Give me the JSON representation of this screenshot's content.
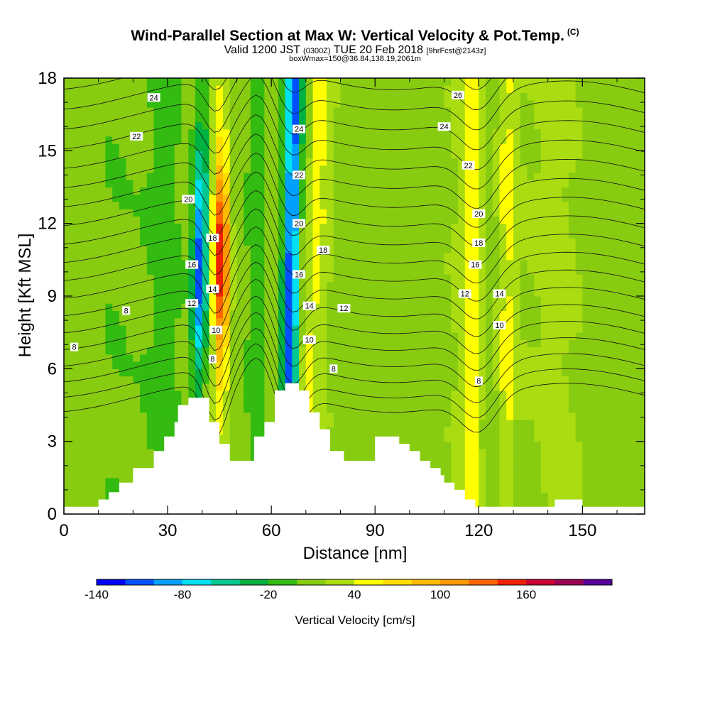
{
  "header": {
    "title": "Wind-Parallel Section at Max W: Vertical Velocity & Pot.Temp.",
    "copyright": "(C)",
    "valid_prefix": "Valid 1200 JST",
    "valid_utc": "(0300Z)",
    "valid_date": "TUE 20 Feb 2018",
    "forecast": "[9hrFcst@2143z]",
    "box_info": "boxWmax=150@36.84,138.19,2061m"
  },
  "chart_data": {
    "type": "heatmap",
    "xlabel": "Distance [nm]",
    "ylabel": "Height [Kft MSL]",
    "xlim": [
      0,
      168
    ],
    "ylim": [
      0,
      18
    ],
    "x_ticks": [
      "0",
      "30",
      "60",
      "90",
      "120",
      "150"
    ],
    "y_ticks": [
      "0",
      "3",
      "6",
      "9",
      "12",
      "15",
      "18"
    ],
    "colorbar": {
      "label": "Vertical Velocity [cm/s]",
      "tick_labels": [
        "-140",
        "-80",
        "-20",
        "40",
        "100",
        "160"
      ],
      "levels": [
        -140,
        -120,
        -100,
        -80,
        -60,
        -40,
        -20,
        0,
        20,
        40,
        60,
        80,
        100,
        120,
        140,
        160,
        180,
        200
      ],
      "colors": [
        "#0000ff",
        "#0050ff",
        "#00a0ff",
        "#00e0f0",
        "#00c890",
        "#00b040",
        "#33bb11",
        "#88cc11",
        "#aadd11",
        "#ffff00",
        "#ffdd00",
        "#ffbb00",
        "#ff9900",
        "#ff6600",
        "#ee2200",
        "#cc0033",
        "#990055",
        "#550099"
      ]
    },
    "terrain_kft": [
      [
        0,
        0.3
      ],
      [
        10,
        0.3
      ],
      [
        10,
        0.6
      ],
      [
        13,
        0.6
      ],
      [
        13,
        0.9
      ],
      [
        16,
        0.9
      ],
      [
        16,
        1.3
      ],
      [
        20,
        1.3
      ],
      [
        20,
        1.9
      ],
      [
        26,
        1.9
      ],
      [
        26,
        2.6
      ],
      [
        29,
        2.6
      ],
      [
        29,
        3.2
      ],
      [
        32,
        3.2
      ],
      [
        32,
        3.8
      ],
      [
        33,
        3.8
      ],
      [
        33,
        4.5
      ],
      [
        36,
        4.5
      ],
      [
        36,
        4.8
      ],
      [
        42,
        4.8
      ],
      [
        42,
        3.8
      ],
      [
        45,
        3.8
      ],
      [
        45,
        2.9
      ],
      [
        48,
        2.9
      ],
      [
        48,
        2.2
      ],
      [
        55,
        2.2
      ],
      [
        55,
        3.2
      ],
      [
        58,
        3.2
      ],
      [
        58,
        3.8
      ],
      [
        61,
        3.8
      ],
      [
        61,
        5.1
      ],
      [
        64,
        5.1
      ],
      [
        64,
        5.4
      ],
      [
        68,
        5.4
      ],
      [
        68,
        5.1
      ],
      [
        71,
        5.1
      ],
      [
        71,
        4.2
      ],
      [
        74,
        4.2
      ],
      [
        74,
        3.5
      ],
      [
        77,
        3.5
      ],
      [
        77,
        2.6
      ],
      [
        81,
        2.6
      ],
      [
        81,
        2.2
      ],
      [
        90,
        2.2
      ],
      [
        90,
        3.2
      ],
      [
        97,
        3.2
      ],
      [
        97,
        2.9
      ],
      [
        100,
        2.9
      ],
      [
        100,
        2.6
      ],
      [
        103,
        2.6
      ],
      [
        103,
        2.2
      ],
      [
        106,
        2.2
      ],
      [
        106,
        1.9
      ],
      [
        109,
        1.9
      ],
      [
        109,
        1.6
      ],
      [
        110,
        1.6
      ],
      [
        110,
        1.3
      ],
      [
        113,
        1.3
      ],
      [
        113,
        1.0
      ],
      [
        116,
        1.0
      ],
      [
        116,
        0.6
      ],
      [
        119,
        0.6
      ],
      [
        119,
        0.3
      ],
      [
        142,
        0.3
      ],
      [
        142,
        0.6
      ],
      [
        150,
        0.6
      ],
      [
        150,
        0.3
      ],
      [
        168,
        0.3
      ]
    ],
    "contour_labels": [
      {
        "text": "24",
        "x": 26,
        "y": 17.2
      },
      {
        "text": "22",
        "x": 21,
        "y": 15.6
      },
      {
        "text": "20",
        "x": 36,
        "y": 13.0
      },
      {
        "text": "18",
        "x": 43,
        "y": 11.4
      },
      {
        "text": "16",
        "x": 37,
        "y": 10.3
      },
      {
        "text": "14",
        "x": 43,
        "y": 9.3
      },
      {
        "text": "12",
        "x": 37,
        "y": 8.7
      },
      {
        "text": "10",
        "x": 44,
        "y": 7.6
      },
      {
        "text": "8",
        "x": 43,
        "y": 6.4
      },
      {
        "text": "8",
        "x": 18,
        "y": 8.4
      },
      {
        "text": "8",
        "x": 3,
        "y": 6.9
      },
      {
        "text": "24",
        "x": 68,
        "y": 15.9
      },
      {
        "text": "22",
        "x": 68,
        "y": 14.0
      },
      {
        "text": "20",
        "x": 68,
        "y": 12.0
      },
      {
        "text": "18",
        "x": 75,
        "y": 10.9
      },
      {
        "text": "16",
        "x": 68,
        "y": 9.9
      },
      {
        "text": "14",
        "x": 71,
        "y": 8.6
      },
      {
        "text": "12",
        "x": 81,
        "y": 8.5
      },
      {
        "text": "10",
        "x": 71,
        "y": 7.2
      },
      {
        "text": "8",
        "x": 78,
        "y": 6.0
      },
      {
        "text": "26",
        "x": 114,
        "y": 17.3
      },
      {
        "text": "24",
        "x": 110,
        "y": 16.0
      },
      {
        "text": "22",
        "x": 117,
        "y": 14.4
      },
      {
        "text": "20",
        "x": 120,
        "y": 12.4
      },
      {
        "text": "18",
        "x": 120,
        "y": 11.2
      },
      {
        "text": "16",
        "x": 119,
        "y": 10.3
      },
      {
        "text": "12",
        "x": 116,
        "y": 9.1
      },
      {
        "text": "14",
        "x": 126,
        "y": 9.1
      },
      {
        "text": "10",
        "x": 126,
        "y": 7.8
      },
      {
        "text": "8",
        "x": 120,
        "y": 5.5
      }
    ]
  }
}
